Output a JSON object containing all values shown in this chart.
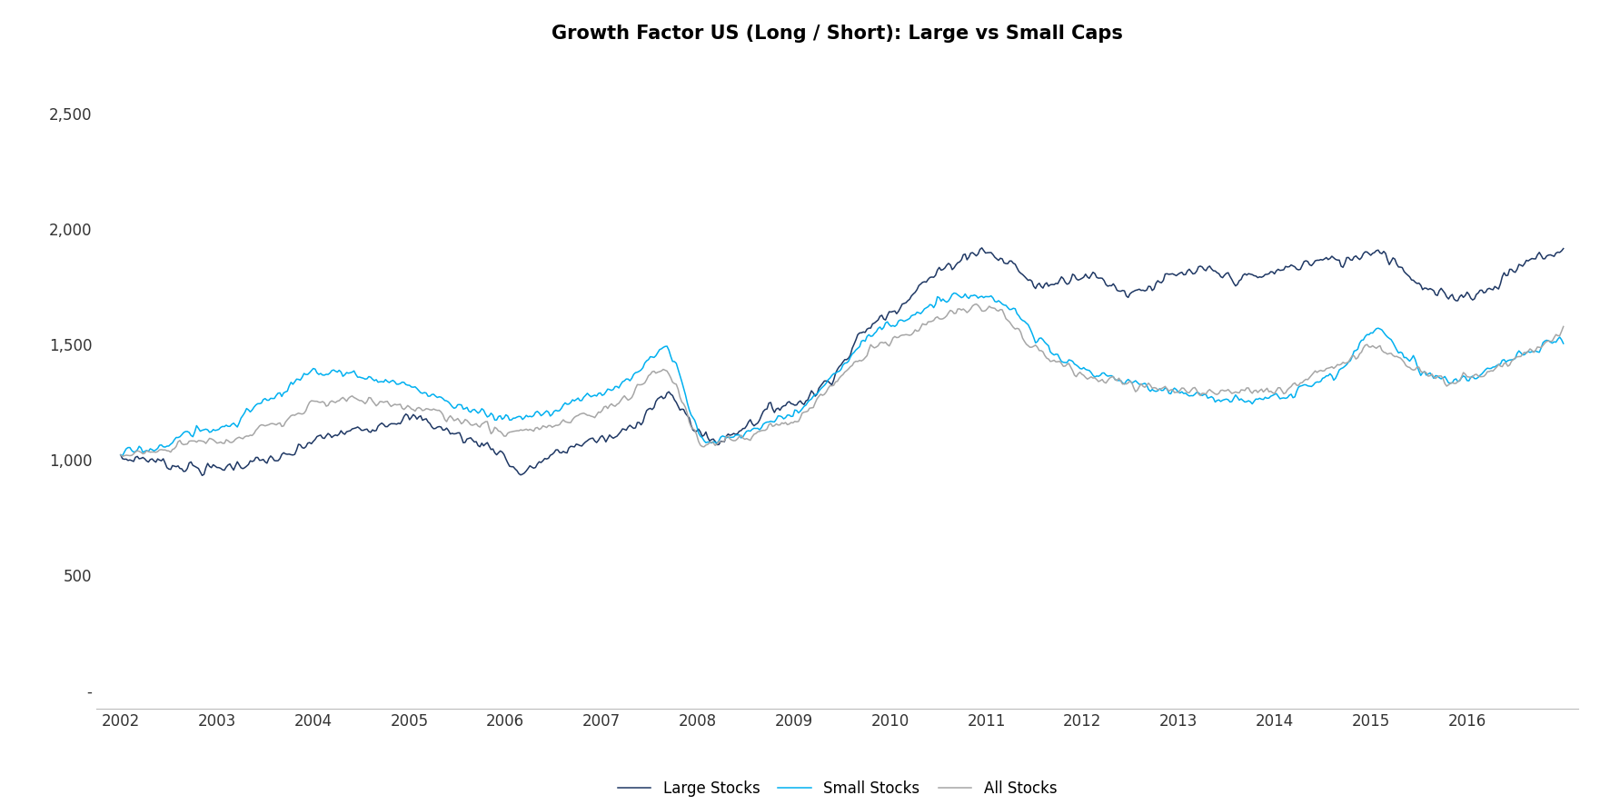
{
  "title": "Growth Factor US (Long / Short): Large vs Small Caps",
  "title_fontsize": 15,
  "title_fontweight": "bold",
  "background_color": "#ffffff",
  "line_colors": {
    "large": "#1f3864",
    "small": "#00b0f0",
    "all": "#a6a6a6"
  },
  "line_width": 1.1,
  "legend_labels": [
    "Large Stocks",
    "Small Stocks",
    "All Stocks"
  ],
  "yticks": [
    0,
    500,
    1000,
    1500,
    2000,
    2500
  ],
  "ytick_labels": [
    "-",
    "500",
    "1,000",
    "1,500",
    "2,000",
    "2,500"
  ],
  "ylim": [
    -80,
    2750
  ],
  "xtick_years": [
    2002,
    2003,
    2004,
    2005,
    2006,
    2007,
    2008,
    2009,
    2010,
    2011,
    2012,
    2013,
    2014,
    2015,
    2016
  ],
  "start_year": 2002,
  "end_year": 2017
}
